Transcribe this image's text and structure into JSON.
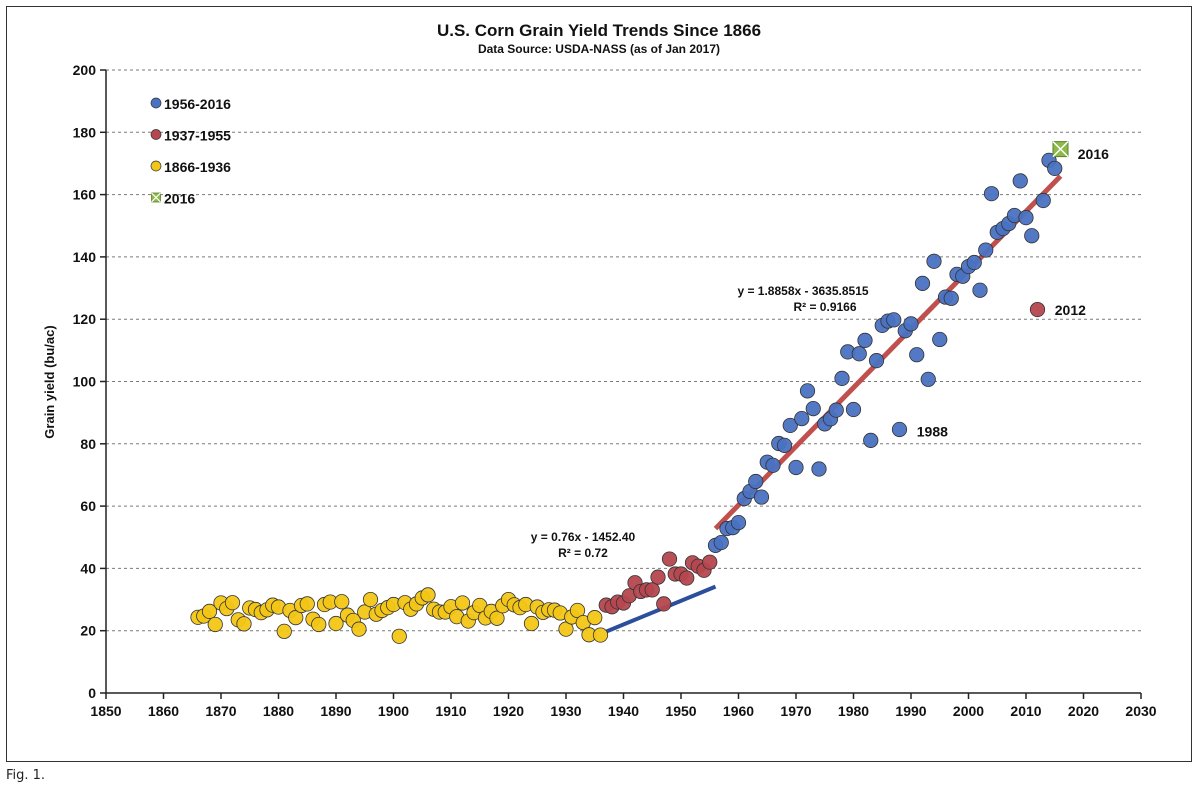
{
  "figure": {
    "caption": "Fig. 1."
  },
  "chart_data": {
    "type": "scatter",
    "title": "U.S. Corn Grain Yield Trends Since 1866",
    "subtitle": "Data Source: USDA-NASS (as of Jan 2017)",
    "xlabel": "",
    "ylabel": "Grain yield (bu/ac)",
    "xlim": [
      1850,
      2030
    ],
    "ylim": [
      0,
      200
    ],
    "xticks": [
      1850,
      1860,
      1870,
      1880,
      1890,
      1900,
      1910,
      1920,
      1930,
      1940,
      1950,
      1960,
      1970,
      1980,
      1990,
      2000,
      2010,
      2020,
      2030
    ],
    "yticks": [
      0,
      20,
      40,
      60,
      80,
      100,
      120,
      140,
      160,
      180,
      200
    ],
    "grid": "horizontal dashed",
    "legend_position": "top-left",
    "colors": {
      "s1": "#4a72c2",
      "s2": "#b5474f",
      "s3": "#f2c616",
      "s4": "#8db84a",
      "trend_old": "#2b4f9c",
      "trend_modern": "#c0504d"
    },
    "series": [
      {
        "name": "1956-2016",
        "color": "#4a72c2",
        "points": [
          [
            1956,
            47.4
          ],
          [
            1957,
            48.3
          ],
          [
            1958,
            52.8
          ],
          [
            1959,
            53.1
          ],
          [
            1960,
            54.7
          ],
          [
            1961,
            62.4
          ],
          [
            1962,
            64.7
          ],
          [
            1963,
            67.9
          ],
          [
            1964,
            62.9
          ],
          [
            1965,
            74.1
          ],
          [
            1966,
            73.1
          ],
          [
            1967,
            80.1
          ],
          [
            1968,
            79.5
          ],
          [
            1969,
            85.9
          ],
          [
            1970,
            72.4
          ],
          [
            1971,
            88.1
          ],
          [
            1972,
            97.0
          ],
          [
            1973,
            91.3
          ],
          [
            1974,
            71.9
          ],
          [
            1975,
            86.4
          ],
          [
            1976,
            88.0
          ],
          [
            1977,
            90.8
          ],
          [
            1978,
            101.0
          ],
          [
            1979,
            109.5
          ],
          [
            1980,
            91.0
          ],
          [
            1981,
            108.9
          ],
          [
            1982,
            113.2
          ],
          [
            1983,
            81.1
          ],
          [
            1984,
            106.7
          ],
          [
            1985,
            118.0
          ],
          [
            1986,
            119.4
          ],
          [
            1987,
            119.8
          ],
          [
            1988,
            84.6
          ],
          [
            1989,
            116.3
          ],
          [
            1990,
            118.5
          ],
          [
            1991,
            108.6
          ],
          [
            1992,
            131.5
          ],
          [
            1993,
            100.7
          ],
          [
            1994,
            138.6
          ],
          [
            1995,
            113.5
          ],
          [
            1996,
            127.1
          ],
          [
            1997,
            126.7
          ],
          [
            1998,
            134.4
          ],
          [
            1999,
            133.8
          ],
          [
            2000,
            136.9
          ],
          [
            2001,
            138.2
          ],
          [
            2002,
            129.3
          ],
          [
            2003,
            142.2
          ],
          [
            2004,
            160.3
          ],
          [
            2005,
            147.9
          ],
          [
            2006,
            149.1
          ],
          [
            2007,
            150.7
          ],
          [
            2008,
            153.3
          ],
          [
            2009,
            164.4
          ],
          [
            2010,
            152.6
          ],
          [
            2011,
            146.8
          ],
          [
            2013,
            158.1
          ],
          [
            2014,
            171.0
          ],
          [
            2015,
            168.4
          ]
        ]
      },
      {
        "name": "1937-1955",
        "color": "#b5474f",
        "points": [
          [
            1937,
            28.2
          ],
          [
            1938,
            27.7
          ],
          [
            1939,
            29.2
          ],
          [
            1940,
            28.9
          ],
          [
            1941,
            31.2
          ],
          [
            1942,
            35.4
          ],
          [
            1943,
            32.6
          ],
          [
            1944,
            33.1
          ],
          [
            1945,
            33.1
          ],
          [
            1946,
            37.2
          ],
          [
            1947,
            28.6
          ],
          [
            1948,
            43.0
          ],
          [
            1949,
            38.2
          ],
          [
            1950,
            38.2
          ],
          [
            1951,
            36.9
          ],
          [
            1952,
            41.8
          ],
          [
            1953,
            40.7
          ],
          [
            1954,
            39.4
          ],
          [
            1955,
            42.0
          ],
          [
            2012,
            123.1
          ]
        ]
      },
      {
        "name": "1866-1936",
        "color": "#f2c616",
        "points": [
          [
            1866,
            24.3
          ],
          [
            1867,
            24.7
          ],
          [
            1868,
            26.2
          ],
          [
            1869,
            22.0
          ],
          [
            1870,
            28.9
          ],
          [
            1871,
            27.1
          ],
          [
            1872,
            29.0
          ],
          [
            1873,
            23.5
          ],
          [
            1874,
            22.2
          ],
          [
            1875,
            27.3
          ],
          [
            1876,
            26.8
          ],
          [
            1877,
            25.8
          ],
          [
            1878,
            26.7
          ],
          [
            1879,
            28.2
          ],
          [
            1880,
            27.6
          ],
          [
            1881,
            19.8
          ],
          [
            1882,
            26.5
          ],
          [
            1883,
            24.2
          ],
          [
            1884,
            28.1
          ],
          [
            1885,
            28.6
          ],
          [
            1886,
            23.7
          ],
          [
            1887,
            22.0
          ],
          [
            1888,
            28.4
          ],
          [
            1889,
            29.2
          ],
          [
            1890,
            22.3
          ],
          [
            1891,
            29.3
          ],
          [
            1892,
            25.0
          ],
          [
            1893,
            23.3
          ],
          [
            1894,
            20.5
          ],
          [
            1895,
            26.0
          ],
          [
            1896,
            30.0
          ],
          [
            1897,
            25.3
          ],
          [
            1898,
            26.5
          ],
          [
            1899,
            27.4
          ],
          [
            1900,
            28.4
          ],
          [
            1901,
            18.2
          ],
          [
            1902,
            29.0
          ],
          [
            1903,
            26.9
          ],
          [
            1904,
            28.6
          ],
          [
            1905,
            30.5
          ],
          [
            1906,
            31.5
          ],
          [
            1907,
            26.9
          ],
          [
            1908,
            26.0
          ],
          [
            1909,
            26.0
          ],
          [
            1910,
            27.7
          ],
          [
            1911,
            24.5
          ],
          [
            1912,
            28.9
          ],
          [
            1913,
            23.1
          ],
          [
            1914,
            25.8
          ],
          [
            1915,
            28.1
          ],
          [
            1916,
            24.1
          ],
          [
            1917,
            26.2
          ],
          [
            1918,
            24.0
          ],
          [
            1919,
            28.0
          ],
          [
            1920,
            30.0
          ],
          [
            1921,
            28.3
          ],
          [
            1922,
            27.4
          ],
          [
            1923,
            28.4
          ],
          [
            1924,
            22.3
          ],
          [
            1925,
            27.6
          ],
          [
            1926,
            25.9
          ],
          [
            1927,
            26.7
          ],
          [
            1928,
            26.6
          ],
          [
            1929,
            25.7
          ],
          [
            1930,
            20.5
          ],
          [
            1931,
            24.4
          ],
          [
            1932,
            26.5
          ],
          [
            1933,
            22.6
          ],
          [
            1934,
            18.7
          ],
          [
            1935,
            24.2
          ],
          [
            1936,
            18.6
          ]
        ]
      },
      {
        "name": "2016",
        "color": "#8db84a",
        "marker": "x-box",
        "points": [
          [
            2016,
            174.6
          ]
        ]
      }
    ],
    "trendlines": [
      {
        "equation": "y = 0.76x - 1452.40",
        "r2": "R² = 0.72",
        "slope": 0.76,
        "intercept": -1452.4,
        "x_range": [
          1937,
          1956
        ],
        "color": "#2b4f9c"
      },
      {
        "equation": "y = 1.8858x - 3635.8515",
        "r2": "R² = 0.9166",
        "slope": 1.8858,
        "intercept": -3635.8515,
        "x_range": [
          1956,
          2016
        ],
        "color": "#c0504d"
      }
    ],
    "annotations": [
      {
        "text": "1988",
        "x": 1991,
        "y": 84
      },
      {
        "text": "2012",
        "x": 2015,
        "y": 123
      },
      {
        "text": "2016",
        "x": 2019,
        "y": 173
      }
    ]
  }
}
